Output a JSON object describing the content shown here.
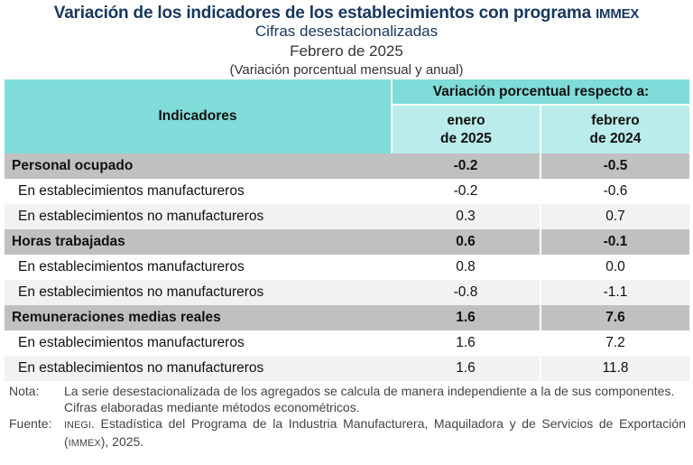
{
  "title": {
    "main": "Variación de los indicadores de los establecimientos con programa",
    "main_suffix": "IMMEX",
    "subtitle": "Cifras desestacionalizadas",
    "period": "Febrero de 2025",
    "note": "(Variación porcentual mensual y anual)"
  },
  "table": {
    "header": {
      "indicadores": "Indicadores",
      "group": "Variación porcentual respecto a:",
      "col1_line1": "enero",
      "col1_line2": "de 2025",
      "col2_line1": "febrero",
      "col2_line2": "de 2024"
    },
    "rows": [
      {
        "label": "Personal ocupado",
        "v1": "-0.2",
        "v2": "-0.5"
      },
      {
        "label": "En establecimientos manufactureros",
        "v1": "-0.2",
        "v2": "-0.6"
      },
      {
        "label": "En establecimientos no manufactureros",
        "v1": "0.3",
        "v2": "0.7"
      },
      {
        "label": "Horas trabajadas",
        "v1": "0.6",
        "v2": "-0.1"
      },
      {
        "label": "En establecimientos manufactureros",
        "v1": "0.8",
        "v2": "0.0"
      },
      {
        "label": "En establecimientos no manufactureros",
        "v1": "-0.8",
        "v2": "-1.1"
      },
      {
        "label": "Remuneraciones medias reales",
        "v1": "1.6",
        "v2": "7.6"
      },
      {
        "label": "En establecimientos manufactureros",
        "v1": "1.6",
        "v2": "7.2"
      },
      {
        "label": "En establecimientos no manufactureros",
        "v1": "1.6",
        "v2": "11.8"
      }
    ]
  },
  "notes": {
    "nota_label": "Nota:",
    "nota_text": "La serie desestacionalizada de los agregados se calcula de manera independiente a la de sus componentes.",
    "nota_text2": "Cifras elaboradas mediante métodos econométricos.",
    "fuente_label": "Fuente:",
    "fuente_inegi": "INEGI",
    "fuente_text1": ". Estadística del Programa de la Industria Manufacturera, Maquiladora y de Servicios de Exportación (",
    "fuente_immex": "IMMEX",
    "fuente_text2": "), 2025."
  },
  "colors": {
    "title": "#17375e",
    "header": "#7fdcd8",
    "subheader": "#b9ecea",
    "group_row": "#c0c0c0"
  }
}
